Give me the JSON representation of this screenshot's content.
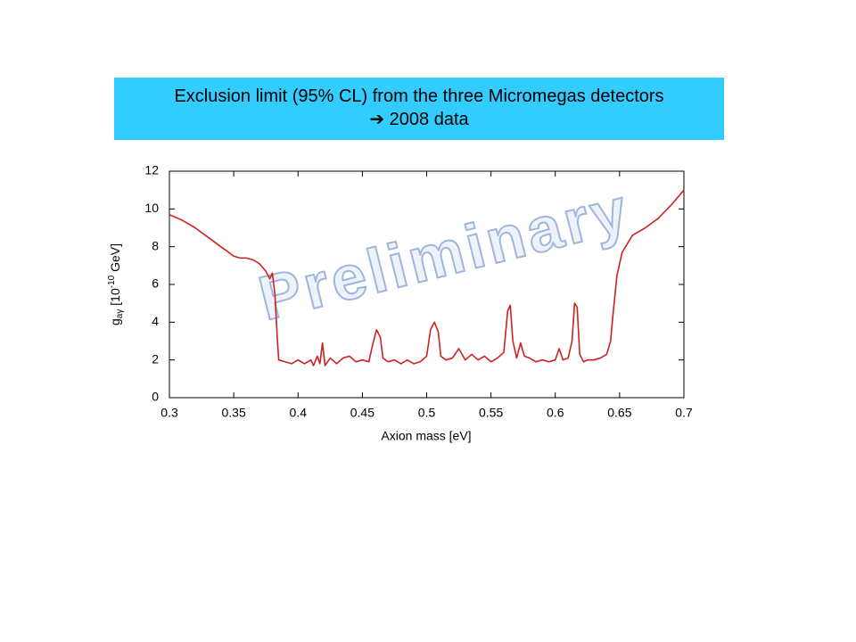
{
  "slide": {
    "heading": [
      "Exclusion limit (95% CL) from the three Micromegas detectors",
      "➔ 2008 data"
    ]
  },
  "chart_data": {
    "type": "line",
    "x_label": "Axion mass [eV]",
    "y_label": {
      "main": "g",
      "sub": "aγ",
      "mid": " [10",
      "sup": "-10",
      "end": " GeV]"
    },
    "annotation": "Preliminary",
    "xlim": [
      0.3,
      0.7
    ],
    "ylim": [
      0,
      12
    ],
    "xticks": [
      0.3,
      0.35,
      0.4,
      0.45,
      0.5,
      0.55,
      0.6,
      0.65,
      0.7
    ],
    "yticks": [
      0,
      2,
      4,
      6,
      8,
      10,
      12
    ],
    "grid": false,
    "series": [
      {
        "color": "#cc2222",
        "x": [
          0.3,
          0.31,
          0.32,
          0.33,
          0.34,
          0.35,
          0.355,
          0.36,
          0.365,
          0.37,
          0.375,
          0.378,
          0.38,
          0.382,
          0.384,
          0.385,
          0.39,
          0.395,
          0.4,
          0.405,
          0.41,
          0.412,
          0.415,
          0.417,
          0.419,
          0.421,
          0.425,
          0.43,
          0.435,
          0.44,
          0.445,
          0.45,
          0.455,
          0.458,
          0.461,
          0.464,
          0.466,
          0.47,
          0.475,
          0.48,
          0.485,
          0.49,
          0.495,
          0.5,
          0.503,
          0.506,
          0.509,
          0.511,
          0.515,
          0.52,
          0.525,
          0.53,
          0.535,
          0.54,
          0.545,
          0.55,
          0.555,
          0.56,
          0.563,
          0.565,
          0.567,
          0.57,
          0.573,
          0.576,
          0.58,
          0.585,
          0.59,
          0.595,
          0.6,
          0.603,
          0.606,
          0.61,
          0.613,
          0.615,
          0.617,
          0.619,
          0.622,
          0.625,
          0.63,
          0.635,
          0.64,
          0.643,
          0.645,
          0.648,
          0.652,
          0.66,
          0.67,
          0.68,
          0.69,
          0.7
        ],
        "values": [
          9.7,
          9.4,
          9.0,
          8.5,
          8.0,
          7.5,
          7.4,
          7.4,
          7.3,
          7.1,
          6.7,
          6.3,
          6.6,
          5.5,
          3.0,
          2.0,
          1.9,
          1.8,
          2.0,
          1.8,
          2.0,
          1.7,
          2.2,
          1.8,
          2.9,
          1.7,
          2.1,
          1.8,
          2.1,
          2.2,
          1.9,
          2.0,
          1.9,
          2.8,
          3.6,
          3.2,
          2.1,
          1.9,
          2.0,
          1.8,
          2.0,
          1.8,
          1.9,
          2.2,
          3.6,
          4.0,
          3.5,
          2.2,
          2.0,
          2.1,
          2.6,
          2.0,
          2.3,
          2.0,
          2.2,
          1.9,
          2.1,
          2.4,
          4.6,
          4.9,
          3.0,
          2.1,
          2.9,
          2.2,
          2.1,
          1.9,
          2.0,
          1.9,
          2.0,
          2.6,
          2.0,
          2.1,
          3.0,
          5.0,
          4.8,
          2.3,
          1.9,
          2.0,
          2.0,
          2.1,
          2.3,
          3.0,
          4.5,
          6.5,
          7.7,
          8.6,
          9.0,
          9.5,
          10.2,
          11.0
        ]
      }
    ]
  }
}
